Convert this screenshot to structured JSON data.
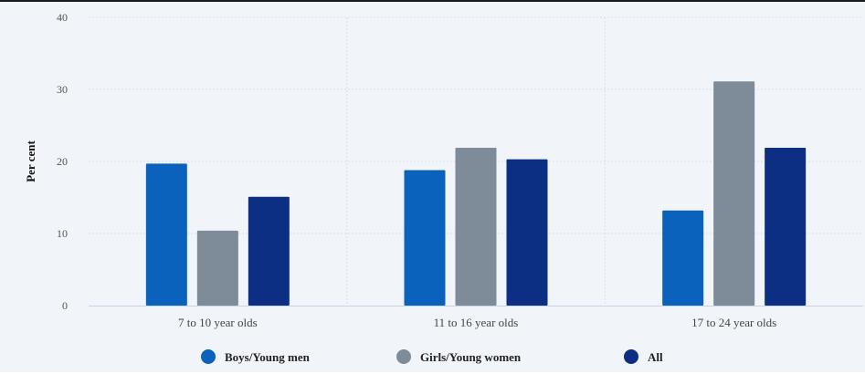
{
  "chart_data": {
    "type": "bar",
    "categories": [
      "7 to 10 year olds",
      "11 to 16 year olds",
      "17 to 24 year olds"
    ],
    "series": [
      {
        "name": "Boys/Young men",
        "values": [
          19.7,
          18.8,
          13.2
        ],
        "color": "#0a62bd"
      },
      {
        "name": "Girls/Young women",
        "values": [
          10.4,
          21.9,
          31.1
        ],
        "color": "#7e8b99"
      },
      {
        "name": "All",
        "values": [
          15.1,
          20.3,
          21.9
        ],
        "color": "#0c2f84"
      }
    ],
    "ylabel": "Per cent",
    "xlabel": "",
    "title": "",
    "ylim": [
      0,
      40
    ],
    "yticks": [
      0,
      10,
      20,
      30,
      40
    ],
    "grid": true,
    "legend_position": "bottom-center"
  }
}
